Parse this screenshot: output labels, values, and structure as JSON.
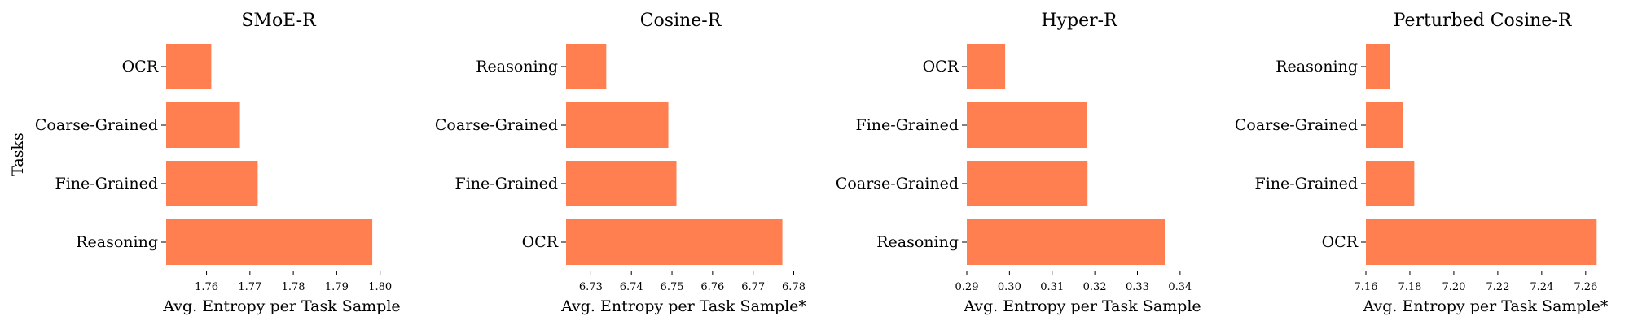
{
  "figure": {
    "ylabel": "Tasks",
    "bar_color": "#FF7F50"
  },
  "chart_data": [
    {
      "type": "bar",
      "orientation": "horizontal",
      "title": "SMoE-R",
      "xlabel": "Avg. Entropy per Task Sample",
      "ylabel": "Tasks",
      "categories": [
        "OCR",
        "Coarse-Grained",
        "Fine-Grained",
        "Reasoning"
      ],
      "values": [
        1.7611,
        1.7677,
        1.7718,
        1.7982
      ],
      "xlim": [
        1.7507,
        1.8025
      ],
      "xticks": [
        "1.76",
        "1.77",
        "1.78",
        "1.79",
        "1.80"
      ],
      "grid": false,
      "legend": "none"
    },
    {
      "type": "bar",
      "orientation": "horizontal",
      "title": "Cosine-R",
      "xlabel": "Avg. Entropy per Task Sample*",
      "categories": [
        "Reasoning",
        "Coarse-Grained",
        "Fine-Grained",
        "OCR"
      ],
      "values": [
        6.7338,
        6.7491,
        6.7511,
        6.7772
      ],
      "xlim": [
        6.7239,
        6.7803
      ],
      "xticks": [
        "6.73",
        "6.74",
        "6.75",
        "6.76",
        "6.77",
        "6.78"
      ],
      "grid": false,
      "legend": "none"
    },
    {
      "type": "bar",
      "orientation": "horizontal",
      "title": "Hyper-R",
      "xlabel": "Avg. Entropy per Task Sample",
      "categories": [
        "OCR",
        "Fine-Grained",
        "Coarse-Grained",
        "Reasoning"
      ],
      "values": [
        0.299,
        0.3181,
        0.3183,
        0.3364
      ],
      "xlim": [
        0.29,
        0.3427
      ],
      "xticks": [
        "0.29",
        "0.30",
        "0.31",
        "0.32",
        "0.33",
        "0.34"
      ],
      "grid": false,
      "legend": "none"
    },
    {
      "type": "bar",
      "orientation": "horizontal",
      "title": "Perturbed Cosine-R",
      "xlabel": "Avg. Entropy per Task Sample*",
      "categories": [
        "Reasoning",
        "Coarse-Grained",
        "Fine-Grained",
        "OCR"
      ],
      "values": [
        7.171,
        7.177,
        7.182,
        7.265
      ],
      "xlim": [
        7.16,
        7.266
      ],
      "xticks": [
        "7.16",
        "7.18",
        "7.20",
        "7.22",
        "7.24",
        "7.26"
      ],
      "grid": false,
      "legend": "none"
    }
  ]
}
